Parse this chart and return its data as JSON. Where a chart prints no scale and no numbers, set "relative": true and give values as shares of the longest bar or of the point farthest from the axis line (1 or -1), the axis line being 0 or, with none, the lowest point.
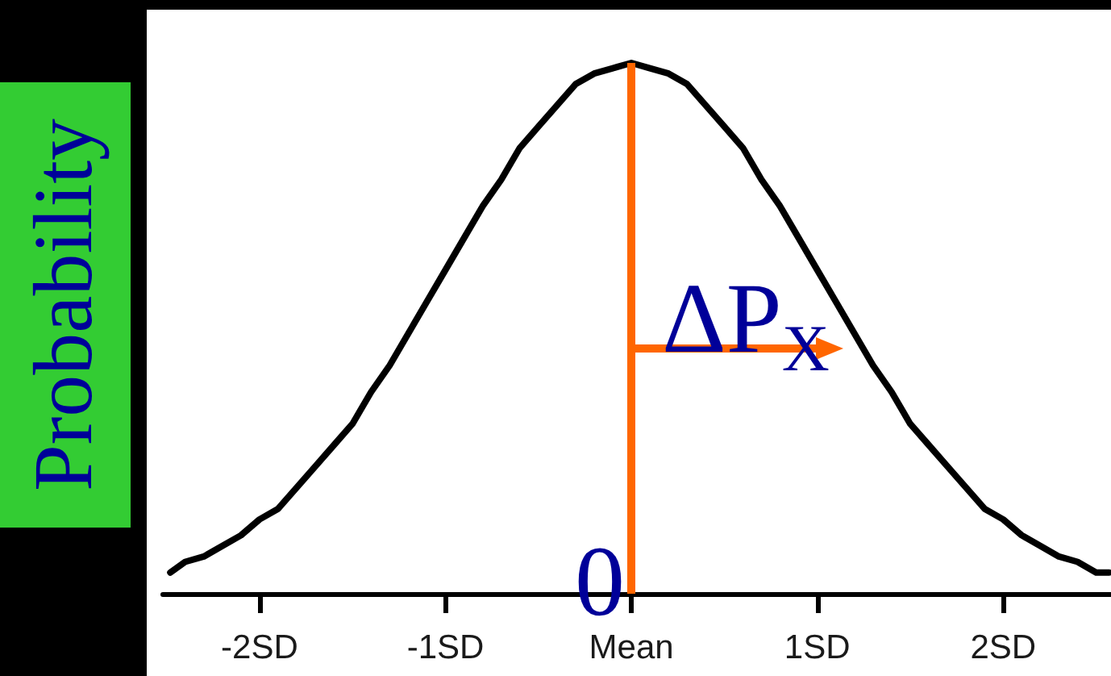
{
  "chart_data": {
    "type": "line",
    "relative": true,
    "ylabel": "Probability",
    "color": "#000000",
    "x": [
      -2.48,
      -2.4,
      -2.3,
      -2.2,
      -2.1,
      -2.0,
      -1.9,
      -1.8,
      -1.7,
      -1.6,
      -1.5,
      -1.4,
      -1.3,
      -1.2,
      -1.1,
      -1.0,
      -0.9,
      -0.8,
      -0.7,
      -0.6,
      -0.5,
      -0.4,
      -0.3,
      -0.2,
      -0.1,
      0,
      0.1,
      0.2,
      0.3,
      0.4,
      0.5,
      0.6,
      0.7,
      0.8,
      0.9,
      1.0,
      1.1,
      1.2,
      1.3,
      1.4,
      1.5,
      1.6,
      1.7,
      1.8,
      1.9,
      2.0,
      2.1,
      2.2,
      2.3,
      2.4,
      2.5,
      2.57
    ],
    "values": [
      0.04,
      0.06,
      0.07,
      0.09,
      0.11,
      0.14,
      0.16,
      0.2,
      0.24,
      0.28,
      0.32,
      0.38,
      0.43,
      0.49,
      0.55,
      0.61,
      0.67,
      0.73,
      0.78,
      0.84,
      0.88,
      0.92,
      0.96,
      0.98,
      0.99,
      1,
      0.99,
      0.98,
      0.96,
      0.92,
      0.88,
      0.84,
      0.78,
      0.73,
      0.67,
      0.61,
      0.55,
      0.49,
      0.43,
      0.38,
      0.32,
      0.28,
      0.24,
      0.2,
      0.16,
      0.14,
      0.11,
      0.09,
      0.07,
      0.06,
      0.04,
      0.04
    ],
    "xlim": [
      -2.52,
      2.58
    ],
    "xticks": [
      {
        "value": -2,
        "label": "-2SD"
      },
      {
        "value": -1,
        "label": "-1SD"
      },
      {
        "value": 0,
        "label": "Mean"
      },
      {
        "value": 1,
        "label": "1SD"
      },
      {
        "value": 2,
        "label": "2SD"
      }
    ],
    "ref_lines": [
      {
        "axis": "x",
        "value": 0,
        "label": "0",
        "color": "#ff6600"
      }
    ],
    "annotations": [
      "ΔP$_{X}$"
    ]
  }
}
